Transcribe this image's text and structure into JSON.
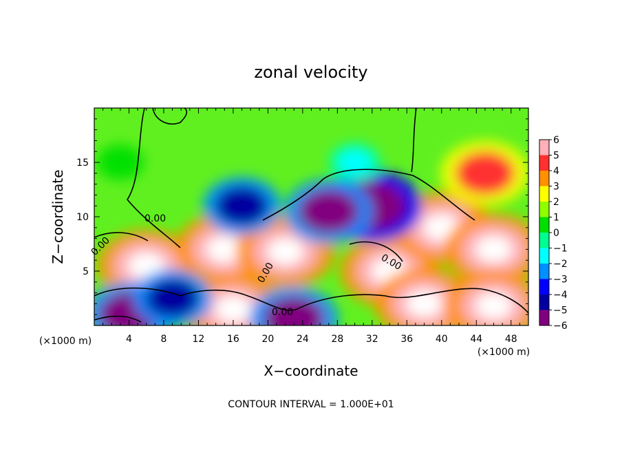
{
  "chart_data": {
    "type": "heatmap",
    "title": "zonal velocity",
    "xlabel": "X−coordinate",
    "ylabel": "Z−coordinate",
    "x_unit": "(×1000 m)",
    "z_unit": "(×1000 m)",
    "footer": "CONTOUR INTERVAL = 1.000E+01",
    "xlim": [
      0,
      50
    ],
    "ylim": [
      0,
      20
    ],
    "x_ticks": [
      "4",
      "8",
      "12",
      "16",
      "20",
      "24",
      "28",
      "32",
      "36",
      "40",
      "44",
      "48"
    ],
    "y_ticks": [
      "5",
      "10",
      "15"
    ],
    "contour_label": "0.00",
    "colorbar": {
      "min": -6,
      "max": 6,
      "labels": [
        "6",
        "5",
        "4",
        "3",
        "2",
        "1",
        "0",
        "−1",
        "−2",
        "−3",
        "−4",
        "−5",
        "−6"
      ],
      "colors": [
        "#ffb0b8",
        "#ff3030",
        "#ff9000",
        "#ffff00",
        "#90ff00",
        "#00e000",
        "#00ff90",
        "#00ffff",
        "#0090ff",
        "#0000ff",
        "#0000a0",
        "#800080"
      ]
    },
    "features": [
      {
        "x": 6,
        "z": 5.5,
        "value": 6
      },
      {
        "x": 15,
        "z": 7,
        "value": 6
      },
      {
        "x": 22,
        "z": 6.8,
        "value": 6
      },
      {
        "x": 34,
        "z": 5,
        "value": 6
      },
      {
        "x": 40,
        "z": 9,
        "value": 6
      },
      {
        "x": 46,
        "z": 7,
        "value": 6
      },
      {
        "x": 45,
        "z": 14,
        "value": 5
      },
      {
        "x": 16,
        "z": 1.5,
        "value": 6
      },
      {
        "x": 38,
        "z": 2,
        "value": 6
      },
      {
        "x": 46,
        "z": 1.8,
        "value": 6
      },
      {
        "x": 32,
        "z": 11,
        "value": -6
      },
      {
        "x": 17,
        "z": 11,
        "value": -4
      },
      {
        "x": 27,
        "z": 10.5,
        "value": -5
      },
      {
        "x": 4,
        "z": 1,
        "value": -5
      },
      {
        "x": 23,
        "z": 0.6,
        "value": -5
      },
      {
        "x": 9,
        "z": 2.5,
        "value": -4
      },
      {
        "x": 30,
        "z": 15,
        "value": -1.5
      },
      {
        "x": 3,
        "z": 15,
        "value": 1
      }
    ]
  }
}
